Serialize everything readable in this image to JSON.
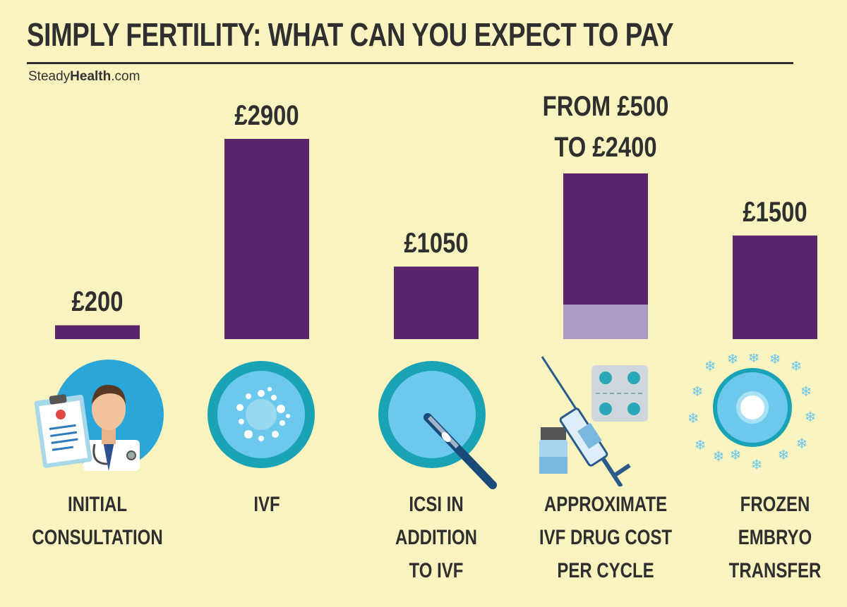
{
  "header": {
    "title": "SIMPLY FERTILITY: WHAT CAN YOU EXPECT TO PAY",
    "brand_regular": "Steady",
    "brand_bold": "Health",
    "brand_suffix": ".com"
  },
  "colors": {
    "background": "#f8f3bf",
    "bar": "#5a256b",
    "bar_low_range": "#ab9dc8",
    "icon_blue": "#6cc8ec",
    "icon_teal": "#1aa3b5"
  },
  "chart_data": {
    "type": "bar",
    "unit": "£",
    "categories": [
      "INITIAL CONSULTATION",
      "IVF",
      "ICSI IN ADDITION TO IVF",
      "APPROXIMATE IVF DRUG COST PER CYCLE",
      "FROZEN EMBRYO TRANSFER"
    ],
    "values": [
      200,
      2900,
      1050,
      2400,
      1500
    ],
    "ranges": [
      null,
      null,
      null,
      [
        500,
        2400
      ],
      null
    ],
    "value_labels": [
      "£200",
      "£2900",
      "£1050",
      "FROM £500 TO £2400",
      "£1500"
    ],
    "ylim": [
      0,
      2900
    ],
    "icons": [
      "doctor-icon",
      "ivf-egg-icon",
      "icsi-needle-icon",
      "syringe-pills-icon",
      "frozen-embryo-icon"
    ],
    "grid": false,
    "legend": "none"
  }
}
